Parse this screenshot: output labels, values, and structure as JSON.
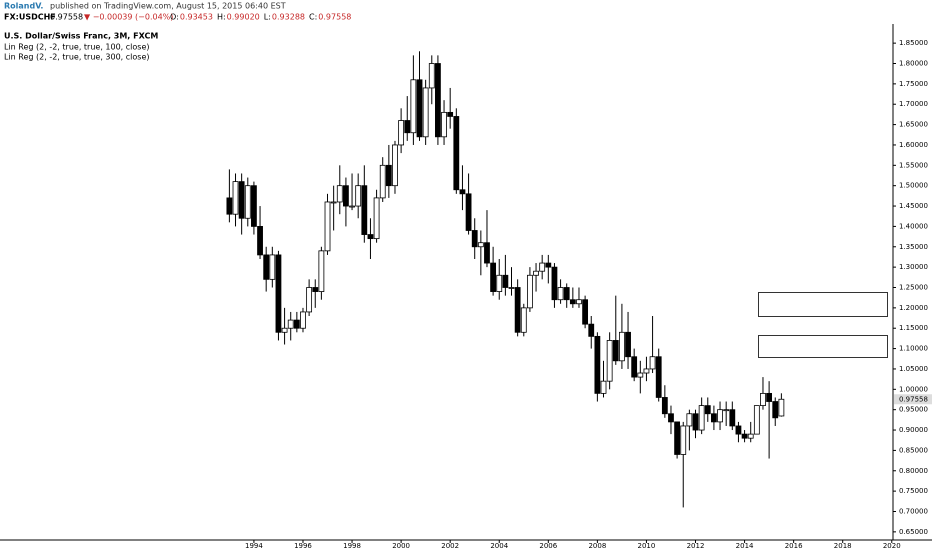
{
  "header": {
    "author": "RolandV.",
    "published": "published on TradingView.com, August 15, 2015 06:40 EST",
    "symbol": "FX:USDCHF",
    "price": "0.97558",
    "change": "▼ −0.00039 (−0.04%)",
    "ohlc": [
      {
        "label": "O:",
        "value": "0.93453"
      },
      {
        "label": "H:",
        "value": "0.99020"
      },
      {
        "label": "L:",
        "value": "0.93288"
      },
      {
        "label": "C:",
        "value": "0.97558"
      }
    ]
  },
  "chart_data": {
    "type": "candlestick",
    "title": "U.S. Dollar/Swiss Franc, 3M, FXCM",
    "indicators": [
      "Lin Reg (2, -2, true, true, 100, close)",
      "Lin Reg (2, -2, true, true, 300, close)"
    ],
    "up_color": "#ffffff",
    "down_color": "#000000",
    "wick_color": "#000000",
    "x": [
      1993,
      1993.25,
      1993.5,
      1993.75,
      1994,
      1994.25,
      1994.5,
      1994.75,
      1995,
      1995.25,
      1995.5,
      1995.75,
      1996,
      1996.25,
      1996.5,
      1996.75,
      1997,
      1997.25,
      1997.5,
      1997.75,
      1998,
      1998.25,
      1998.5,
      1998.75,
      1999,
      1999.25,
      1999.5,
      1999.75,
      2000,
      2000.25,
      2000.5,
      2000.75,
      2001,
      2001.25,
      2001.5,
      2001.75,
      2002,
      2002.25,
      2002.5,
      2002.75,
      2003,
      2003.25,
      2003.5,
      2003.75,
      2004,
      2004.25,
      2004.5,
      2004.75,
      2005,
      2005.25,
      2005.5,
      2005.75,
      2006,
      2006.25,
      2006.5,
      2006.75,
      2007,
      2007.25,
      2007.5,
      2007.75,
      2008,
      2008.25,
      2008.5,
      2008.75,
      2009,
      2009.25,
      2009.5,
      2009.75,
      2010,
      2010.25,
      2010.5,
      2010.75,
      2011,
      2011.25,
      2011.5,
      2011.75,
      2012,
      2012.25,
      2012.5,
      2012.75,
      2013,
      2013.25,
      2013.5,
      2013.75,
      2014,
      2014.25,
      2014.5,
      2014.75,
      2015,
      2015.25,
      2015.5
    ],
    "open": [
      1.47,
      1.43,
      1.51,
      1.42,
      1.5,
      1.4,
      1.33,
      1.27,
      1.33,
      1.14,
      1.15,
      1.17,
      1.15,
      1.19,
      1.25,
      1.24,
      1.34,
      1.46,
      1.46,
      1.5,
      1.45,
      1.45,
      1.5,
      1.38,
      1.37,
      1.47,
      1.55,
      1.5,
      1.6,
      1.66,
      1.63,
      1.76,
      1.62,
      1.74,
      1.8,
      1.62,
      1.68,
      1.67,
      1.49,
      1.48,
      1.39,
      1.35,
      1.36,
      1.31,
      1.24,
      1.28,
      1.25,
      1.25,
      1.14,
      1.2,
      1.28,
      1.29,
      1.31,
      1.3,
      1.22,
      1.25,
      1.22,
      1.21,
      1.22,
      1.16,
      1.13,
      0.99,
      1.02,
      1.12,
      1.07,
      1.14,
      1.08,
      1.03,
      1.04,
      1.05,
      1.08,
      0.98,
      0.94,
      0.92,
      0.84,
      0.91,
      0.94,
      0.9,
      0.96,
      0.94,
      0.92,
      0.95,
      0.95,
      0.91,
      0.89,
      0.88,
      0.89,
      0.96,
      0.99,
      0.97,
      0.93453
    ],
    "high": [
      1.54,
      1.53,
      1.53,
      1.52,
      1.51,
      1.45,
      1.35,
      1.35,
      1.34,
      1.2,
      1.19,
      1.19,
      1.2,
      1.27,
      1.27,
      1.35,
      1.48,
      1.5,
      1.55,
      1.52,
      1.53,
      1.53,
      1.55,
      1.42,
      1.49,
      1.57,
      1.6,
      1.61,
      1.69,
      1.72,
      1.82,
      1.83,
      1.76,
      1.82,
      1.82,
      1.71,
      1.74,
      1.69,
      1.55,
      1.53,
      1.42,
      1.39,
      1.44,
      1.35,
      1.32,
      1.33,
      1.3,
      1.27,
      1.21,
      1.3,
      1.31,
      1.33,
      1.33,
      1.31,
      1.27,
      1.26,
      1.25,
      1.25,
      1.23,
      1.18,
      1.14,
      1.07,
      1.14,
      1.23,
      1.21,
      1.19,
      1.1,
      1.07,
      1.08,
      1.18,
      1.1,
      1.01,
      0.96,
      0.92,
      0.92,
      0.95,
      0.95,
      0.98,
      0.98,
      0.96,
      0.97,
      0.97,
      0.97,
      0.92,
      0.9,
      0.92,
      0.96,
      1.03,
      1.02,
      0.98,
      0.9902
    ],
    "low": [
      1.41,
      1.4,
      1.38,
      1.4,
      1.38,
      1.32,
      1.24,
      1.25,
      1.12,
      1.11,
      1.12,
      1.14,
      1.14,
      1.18,
      1.2,
      1.22,
      1.33,
      1.39,
      1.43,
      1.4,
      1.44,
      1.42,
      1.36,
      1.32,
      1.36,
      1.46,
      1.47,
      1.48,
      1.58,
      1.61,
      1.6,
      1.61,
      1.6,
      1.7,
      1.6,
      1.6,
      1.64,
      1.48,
      1.44,
      1.38,
      1.32,
      1.28,
      1.3,
      1.23,
      1.22,
      1.23,
      1.23,
      1.13,
      1.13,
      1.19,
      1.24,
      1.27,
      1.26,
      1.2,
      1.21,
      1.2,
      1.2,
      1.2,
      1.15,
      1.1,
      0.97,
      0.98,
      1.0,
      1.06,
      1.05,
      1.05,
      1.02,
      0.99,
      1.02,
      1.04,
      0.97,
      0.93,
      0.89,
      0.83,
      0.71,
      0.85,
      0.88,
      0.89,
      0.92,
      0.9,
      0.9,
      0.91,
      0.9,
      0.87,
      0.87,
      0.87,
      0.89,
      0.95,
      0.83,
      0.91,
      0.93288
    ],
    "close": [
      1.43,
      1.51,
      1.42,
      1.5,
      1.4,
      1.33,
      1.27,
      1.33,
      1.14,
      1.15,
      1.17,
      1.15,
      1.19,
      1.25,
      1.24,
      1.34,
      1.46,
      1.46,
      1.5,
      1.45,
      1.45,
      1.5,
      1.38,
      1.37,
      1.47,
      1.55,
      1.5,
      1.6,
      1.66,
      1.63,
      1.76,
      1.62,
      1.74,
      1.8,
      1.62,
      1.68,
      1.67,
      1.49,
      1.48,
      1.39,
      1.35,
      1.36,
      1.31,
      1.24,
      1.28,
      1.25,
      1.25,
      1.14,
      1.2,
      1.28,
      1.29,
      1.31,
      1.3,
      1.22,
      1.25,
      1.22,
      1.21,
      1.22,
      1.16,
      1.13,
      0.99,
      1.02,
      1.12,
      1.07,
      1.14,
      1.08,
      1.03,
      1.04,
      1.05,
      1.08,
      0.98,
      0.94,
      0.92,
      0.84,
      0.91,
      0.94,
      0.9,
      0.96,
      0.94,
      0.92,
      0.95,
      0.95,
      0.91,
      0.89,
      0.88,
      0.89,
      0.96,
      0.99,
      0.97,
      0.93,
      0.97558
    ],
    "xlim": [
      1983.65,
      2020.05
    ],
    "ylim": [
      0.63,
      1.897
    ],
    "xticks": [
      1994,
      1996,
      1998,
      2000,
      2002,
      2004,
      2006,
      2008,
      2010,
      2012,
      2014,
      2016,
      2018,
      2020
    ],
    "yticks": [
      {
        "value": 0.65,
        "label": "0.65000"
      },
      {
        "value": 0.7,
        "label": "0.70000"
      },
      {
        "value": 0.75,
        "label": "0.75000"
      },
      {
        "value": 0.8,
        "label": "0.80000"
      },
      {
        "value": 0.85,
        "label": "0.85000"
      },
      {
        "value": 0.9,
        "label": "0.90000"
      },
      {
        "value": 0.95,
        "label": "0.95000"
      },
      {
        "value": 1.0,
        "label": "1.00000"
      },
      {
        "value": 1.05,
        "label": "1.05000"
      },
      {
        "value": 1.1,
        "label": "1.10000"
      },
      {
        "value": 1.15,
        "label": "1.15000"
      },
      {
        "value": 1.2,
        "label": "1.20000"
      },
      {
        "value": 1.25,
        "label": "1.25000"
      },
      {
        "value": 1.3,
        "label": "1.30000"
      },
      {
        "value": 1.35,
        "label": "1.35000"
      },
      {
        "value": 1.4,
        "label": "1.40000"
      },
      {
        "value": 1.45,
        "label": "1.45000"
      },
      {
        "value": 1.5,
        "label": "1.50000"
      },
      {
        "value": 1.55,
        "label": "1.55000"
      },
      {
        "value": 1.6,
        "label": "1.60000"
      },
      {
        "value": 1.65,
        "label": "1.65000"
      },
      {
        "value": 1.7,
        "label": "1.70000"
      },
      {
        "value": 1.75,
        "label": "1.75000"
      },
      {
        "value": 1.8,
        "label": "1.80000"
      },
      {
        "value": 1.85,
        "label": "1.85000"
      }
    ],
    "grid": false
  }
}
